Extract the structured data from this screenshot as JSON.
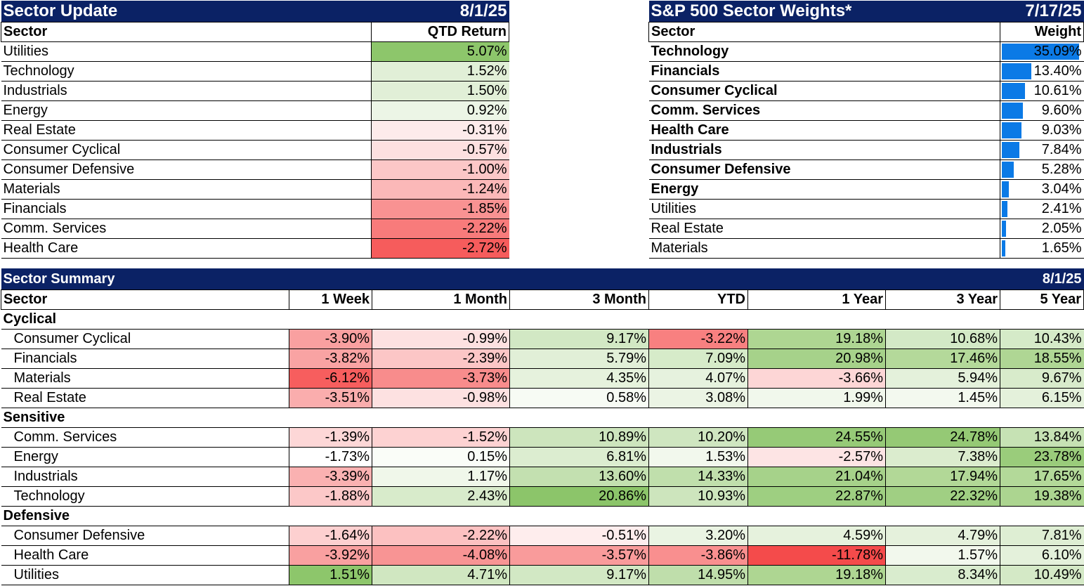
{
  "sector_update": {
    "title": "Sector Update",
    "date": "8/1/25",
    "col_sector": "Sector",
    "col_return": "QTD Return",
    "rows": [
      {
        "sector": "Utilities",
        "value": "5.07%",
        "color": "#8dc66b"
      },
      {
        "sector": "Technology",
        "value": "1.52%",
        "color": "#e1efd7"
      },
      {
        "sector": "Industrials",
        "value": "1.50%",
        "color": "#e1efd7"
      },
      {
        "sector": "Energy",
        "value": "0.92%",
        "color": "#ecf5e6"
      },
      {
        "sector": "Real Estate",
        "value": "-0.31%",
        "color": "#fdebeb"
      },
      {
        "sector": "Consumer Cyclical",
        "value": "-0.57%",
        "color": "#fde0e0"
      },
      {
        "sector": "Consumer Defensive",
        "value": "-1.00%",
        "color": "#fcc7c7"
      },
      {
        "sector": "Materials",
        "value": "-1.24%",
        "color": "#fbb8b8"
      },
      {
        "sector": "Financials",
        "value": "-1.85%",
        "color": "#f99292"
      },
      {
        "sector": "Comm. Services",
        "value": "-2.22%",
        "color": "#f87b7b"
      },
      {
        "sector": "Health Care",
        "value": "-2.72%",
        "color": "#f65c5c"
      }
    ]
  },
  "sector_weights": {
    "title": "S&P 500 Sector Weights*",
    "date": "7/17/25",
    "col_sector": "Sector",
    "col_weight": "Weight",
    "bar_color": "#0b7ae6",
    "rows": [
      {
        "sector": "Technology",
        "value": "35.09%",
        "weight": 35.09,
        "bold": true
      },
      {
        "sector": "Financials",
        "value": "13.40%",
        "weight": 13.4,
        "bold": true
      },
      {
        "sector": "Consumer Cyclical",
        "value": "10.61%",
        "weight": 10.61,
        "bold": true
      },
      {
        "sector": "Comm. Services",
        "value": "9.60%",
        "weight": 9.6,
        "bold": true
      },
      {
        "sector": "Health Care",
        "value": "9.03%",
        "weight": 9.03,
        "bold": true
      },
      {
        "sector": "Industrials",
        "value": "7.84%",
        "weight": 7.84,
        "bold": true
      },
      {
        "sector": "Consumer Defensive",
        "value": "5.28%",
        "weight": 5.28,
        "bold": true
      },
      {
        "sector": "Energy",
        "value": "3.04%",
        "weight": 3.04,
        "bold": true
      },
      {
        "sector": "Utilities",
        "value": "2.41%",
        "weight": 2.41,
        "bold": false
      },
      {
        "sector": "Real Estate",
        "value": "2.05%",
        "weight": 2.05,
        "bold": false
      },
      {
        "sector": "Materials",
        "value": "1.65%",
        "weight": 1.65,
        "bold": false
      }
    ]
  },
  "sector_summary": {
    "title": "Sector Summary",
    "date": "8/1/25",
    "columns": [
      "Sector",
      "1 Week",
      "1 Month",
      "3 Month",
      "YTD",
      "1 Year",
      "3 Year",
      "5 Year"
    ],
    "groups": [
      {
        "name": "Cyclical",
        "rows": [
          {
            "sector": "Consumer Cyclical",
            "values": [
              "-3.90%",
              "-0.99%",
              "9.17%",
              "-3.22%",
              "19.18%",
              "10.68%",
              "10.43%"
            ],
            "colors": [
              "#f9a0a0",
              "#fde1e1",
              "#d2e8c4",
              "#f88080",
              "#aed692",
              "#d3e9c6",
              "#d5eac8"
            ]
          },
          {
            "sector": "Financials",
            "values": [
              "-3.82%",
              "-2.39%",
              "5.79%",
              "7.09%",
              "20.98%",
              "17.46%",
              "18.55%"
            ],
            "colors": [
              "#f9a3a3",
              "#fcc6c6",
              "#e1efd7",
              "#d6ebc9",
              "#a6d28a",
              "#b4d99a",
              "#afd694"
            ]
          },
          {
            "sector": "Materials",
            "values": [
              "-6.12%",
              "-3.73%",
              "4.35%",
              "4.07%",
              "-3.66%",
              "5.94%",
              "9.67%"
            ],
            "colors": [
              "#f75e5e",
              "#f88c8c",
              "#e6f2dd",
              "#e6f2de",
              "#fdd6d6",
              "#e4f1db",
              "#d8ebcb"
            ]
          },
          {
            "sector": "Real Estate",
            "values": [
              "-3.51%",
              "-0.98%",
              "0.58%",
              "3.08%",
              "1.99%",
              "1.45%",
              "6.15%"
            ],
            "colors": [
              "#faadad",
              "#fde1e1",
              "#f7fbf4",
              "#ebf4e4",
              "#f1f8ec",
              "#f3f9ef",
              "#e4f1db"
            ]
          }
        ]
      },
      {
        "name": "Sensitive",
        "rows": [
          {
            "sector": "Comm. Services",
            "values": [
              "-1.39%",
              "-1.52%",
              "10.89%",
              "10.20%",
              "24.55%",
              "24.78%",
              "13.84%"
            ],
            "colors": [
              "#fdd7d7",
              "#fdd2d2",
              "#cde5bd",
              "#cfe6c0",
              "#96ca77",
              "#95c975",
              "#c6e2b4"
            ]
          },
          {
            "sector": "Energy",
            "values": [
              "-1.73%",
              "0.15%",
              "6.81%",
              "1.53%",
              "-2.57%",
              "7.38%",
              "23.78%"
            ],
            "colors": [
              "#fcccccc",
              "#fafdf8",
              "#dcedd0",
              "#f2f8ed",
              "#fde4e4",
              "#dbecce",
              "#9acc7b"
            ]
          },
          {
            "sector": "Industrials",
            "values": [
              "-3.39%",
              "1.17%",
              "13.60%",
              "14.33%",
              "21.04%",
              "17.94%",
              "17.65%"
            ],
            "colors": [
              "#fab1b1",
              "#f0f7ea",
              "#c3e0b0",
              "#c0dfac",
              "#a6d28a",
              "#b2d897",
              "#b3d999"
            ]
          },
          {
            "sector": "Technology",
            "values": [
              "-1.88%",
              "2.43%",
              "20.86%",
              "10.93%",
              "22.87%",
              "22.32%",
              "19.38%"
            ],
            "colors": [
              "#fcc8c8",
              "#d8ebcb",
              "#8cc56a",
              "#cde5bd",
              "#9ecf81",
              "#a0cf83",
              "#acd590"
            ]
          }
        ]
      },
      {
        "name": "Defensive",
        "rows": [
          {
            "sector": "Consumer Defensive",
            "values": [
              "-1.64%",
              "-2.22%",
              "-0.51%",
              "3.20%",
              "4.59%",
              "4.79%",
              "7.81%"
            ],
            "colors": [
              "#fdd0d0",
              "#fcc1c1",
              "#feeded",
              "#eaf4e3",
              "#e6f2dd",
              "#e5f1dc",
              "#deeed3"
            ]
          },
          {
            "sector": "Health Care",
            "values": [
              "-3.92%",
              "-4.08%",
              "-3.57%",
              "-3.86%",
              "-11.78%",
              "1.57%",
              "6.10%"
            ],
            "colors": [
              "#f9a0a0",
              "#f89494",
              "#f99b9b",
              "#f98f8f",
              "#f44b4b",
              "#f2f8ed",
              "#e4f1db"
            ]
          },
          {
            "sector": "Utilities",
            "values": [
              "1.51%",
              "4.71%",
              "9.17%",
              "14.95%",
              "19.18%",
              "8.34%",
              "10.49%"
            ],
            "colors": [
              "#8dc66b",
              "#d0e7c1",
              "#d2e8c4",
              "#bfdeab",
              "#aed692",
              "#d9ecce",
              "#d4e9c6"
            ]
          }
        ]
      }
    ]
  }
}
